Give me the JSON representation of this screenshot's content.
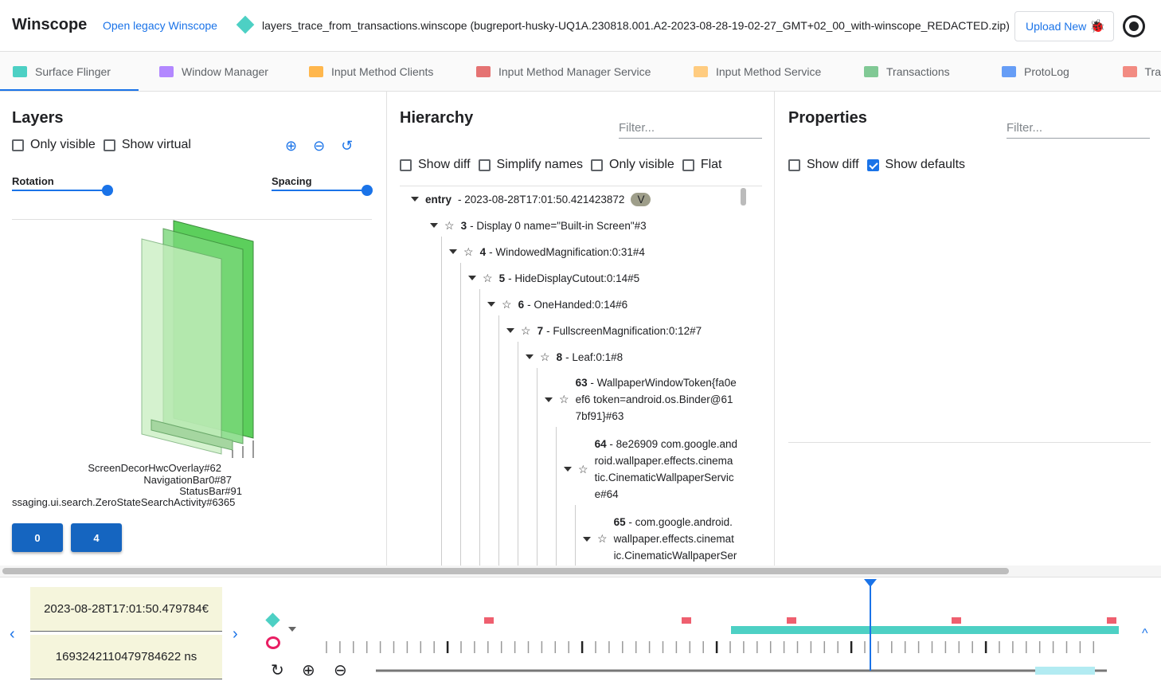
{
  "header": {
    "title": "Winscope",
    "legacy_link": "Open legacy Winscope",
    "trace_file": "layers_trace_from_transactions.winscope (bugreport-husky-UQ1A.230818.001.A2-2023-08-28-19-02-27_GMT+02_00_with-winscope_REDACTED.zip)",
    "upload_label": "Upload New",
    "bug_icon": "bug-icon",
    "theme_icon": "theme-toggle-icon"
  },
  "tabs": [
    {
      "label": "Surface Flinger",
      "color": "#4dd0c4"
    },
    {
      "label": "Window Manager",
      "color": "#b388ff"
    },
    {
      "label": "Input Method Clients",
      "color": "#ffb74d"
    },
    {
      "label": "Input Method Manager Service",
      "color": "#e57373"
    },
    {
      "label": "Input Method Service",
      "color": "#ffcc80"
    },
    {
      "label": "Transactions",
      "color": "#81c995"
    },
    {
      "label": "ProtoLog",
      "color": "#669df6"
    },
    {
      "label": "Tra",
      "color": "#f28b82"
    }
  ],
  "layers": {
    "title": "Layers",
    "only_visible": "Only visible",
    "show_virtual": "Show virtual",
    "rotation": "Rotation",
    "spacing": "Spacing",
    "rotation_value": 1.0,
    "spacing_value": 1.0,
    "labels": [
      "ScreenDecorHwcOverlay#62",
      "NavigationBar0#87",
      "StatusBar#91",
      "ssaging.ui.search.ZeroStateSearchActivity#6365"
    ],
    "display_buttons": [
      "0",
      "4"
    ]
  },
  "hierarchy": {
    "title": "Hierarchy",
    "filter_placeholder": "Filter...",
    "options": [
      "Show diff",
      "Simplify names",
      "Only visible",
      "Flat"
    ],
    "entry": {
      "label": "entry",
      "timestamp": "- 2023-08-28T17:01:50.421423872",
      "badge": "V"
    },
    "nodes": [
      {
        "id": "3",
        "text": "- Display 0 name=\"Built-in Screen\"#3"
      },
      {
        "id": "4",
        "text": "- WindowedMagnification:0:31#4"
      },
      {
        "id": "5",
        "text": "- HideDisplayCutout:0:14#5"
      },
      {
        "id": "6",
        "text": "- OneHanded:0:14#6"
      },
      {
        "id": "7",
        "text": "- FullscreenMagnification:0:12#7"
      },
      {
        "id": "8",
        "text": "- Leaf:0:1#8"
      },
      {
        "id": "63",
        "lines": [
          "- WallpaperWindowToken{fa0e",
          "ef6 token=android.os.Binder@61",
          "7bf91}#63"
        ]
      },
      {
        "id": "64",
        "lines": [
          "- 8e26909 com.google.and",
          "roid.wallpaper.effects.cinema",
          "tic.CinematicWallpaperServic",
          "e#64"
        ]
      },
      {
        "id": "65",
        "lines": [
          "- com.google.android.",
          "wallpaper.effects.cinemat",
          "ic.CinematicWallpaperSer"
        ]
      }
    ]
  },
  "properties": {
    "title": "Properties",
    "filter_placeholder": "Filter...",
    "show_diff": "Show diff",
    "show_defaults": "Show defaults",
    "show_defaults_checked": true
  },
  "timeline": {
    "timestamp": "2023-08-28T17:01:50.479784€",
    "ns": "1693242110479784622 ns",
    "prev_icon": "chevron-left-icon",
    "next_icon": "chevron-right-icon",
    "accent": "#1a73e8"
  }
}
